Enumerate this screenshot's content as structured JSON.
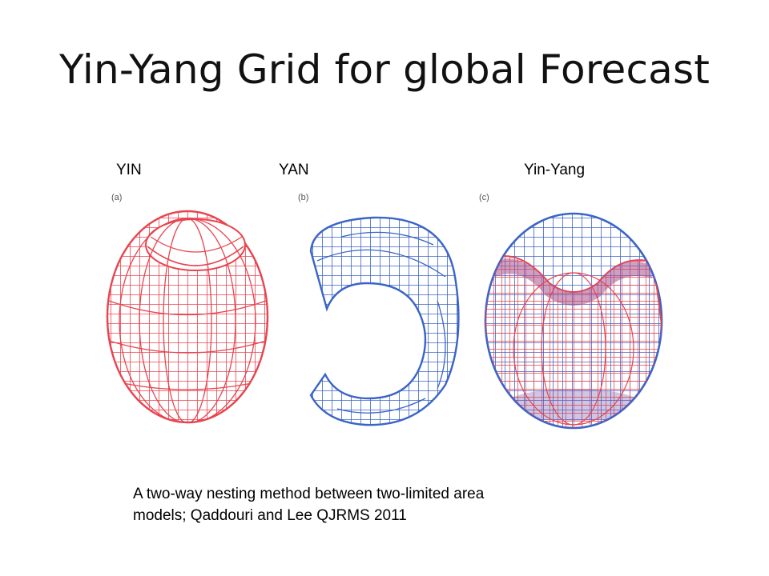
{
  "slide": {
    "title": "Yin-Yang Grid for global Forecast",
    "caption_line1": "A two-way nesting method between two-limited area",
    "caption_line2": "models; Qaddouri and Lee  QJRMS 2011"
  },
  "panels": [
    {
      "label": "YIN",
      "letter": "(a)",
      "color": "#e8444f"
    },
    {
      "label": "YAN",
      "letter": "(b)",
      "color": "#3a64c8"
    },
    {
      "label": "Yin-Yang",
      "letter": "(c)",
      "color": "#3a64c8"
    }
  ]
}
